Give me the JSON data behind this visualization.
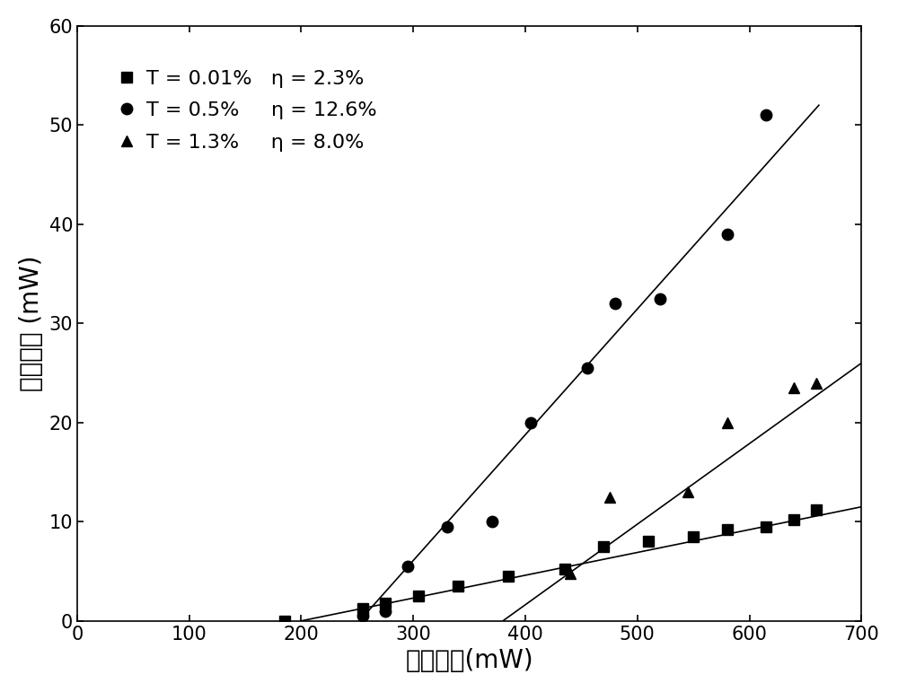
{
  "title": "",
  "xlabel": "吸收功率(mW)",
  "ylabel": "输出功率 (mW)",
  "xlim": [
    0,
    700
  ],
  "ylim": [
    0,
    60
  ],
  "xticks": [
    0,
    100,
    200,
    300,
    400,
    500,
    600,
    700
  ],
  "yticks": [
    0,
    10,
    20,
    30,
    40,
    50,
    60
  ],
  "series": [
    {
      "label": "T = 0.01%   η = 2.3%",
      "marker": "s",
      "x": [
        185,
        255,
        275,
        305,
        340,
        385,
        435,
        470,
        510,
        550,
        580,
        615,
        640,
        660
      ],
      "y": [
        0.0,
        1.2,
        1.8,
        2.5,
        3.5,
        4.5,
        5.2,
        7.5,
        8.0,
        8.5,
        9.2,
        9.5,
        10.2,
        11.2
      ],
      "fit_x": [
        200,
        700
      ],
      "fit_y": [
        0.0,
        11.5
      ],
      "color": "black"
    },
    {
      "label": "T = 0.5%     η = 12.6%",
      "marker": "o",
      "x": [
        255,
        275,
        295,
        330,
        370,
        405,
        455,
        480,
        520,
        580,
        615
      ],
      "y": [
        0.5,
        1.0,
        5.5,
        9.5,
        10.0,
        20.0,
        25.5,
        32.0,
        32.5,
        39.0,
        51.0
      ],
      "fit_x": [
        252,
        662
      ],
      "fit_y": [
        0.0,
        52.0
      ],
      "color": "black"
    },
    {
      "label": "T = 1.3%     η = 8.0%",
      "marker": "^",
      "x": [
        440,
        475,
        545,
        580,
        640,
        660
      ],
      "y": [
        4.8,
        12.5,
        13.0,
        20.0,
        23.5,
        24.0
      ],
      "fit_x": [
        380,
        700
      ],
      "fit_y": [
        0.0,
        26.0
      ],
      "color": "black"
    }
  ],
  "background_color": "#ffffff",
  "marker_size": 9,
  "line_width": 1.2,
  "font_size_label": 20,
  "font_size_tick": 15,
  "font_size_legend": 16
}
